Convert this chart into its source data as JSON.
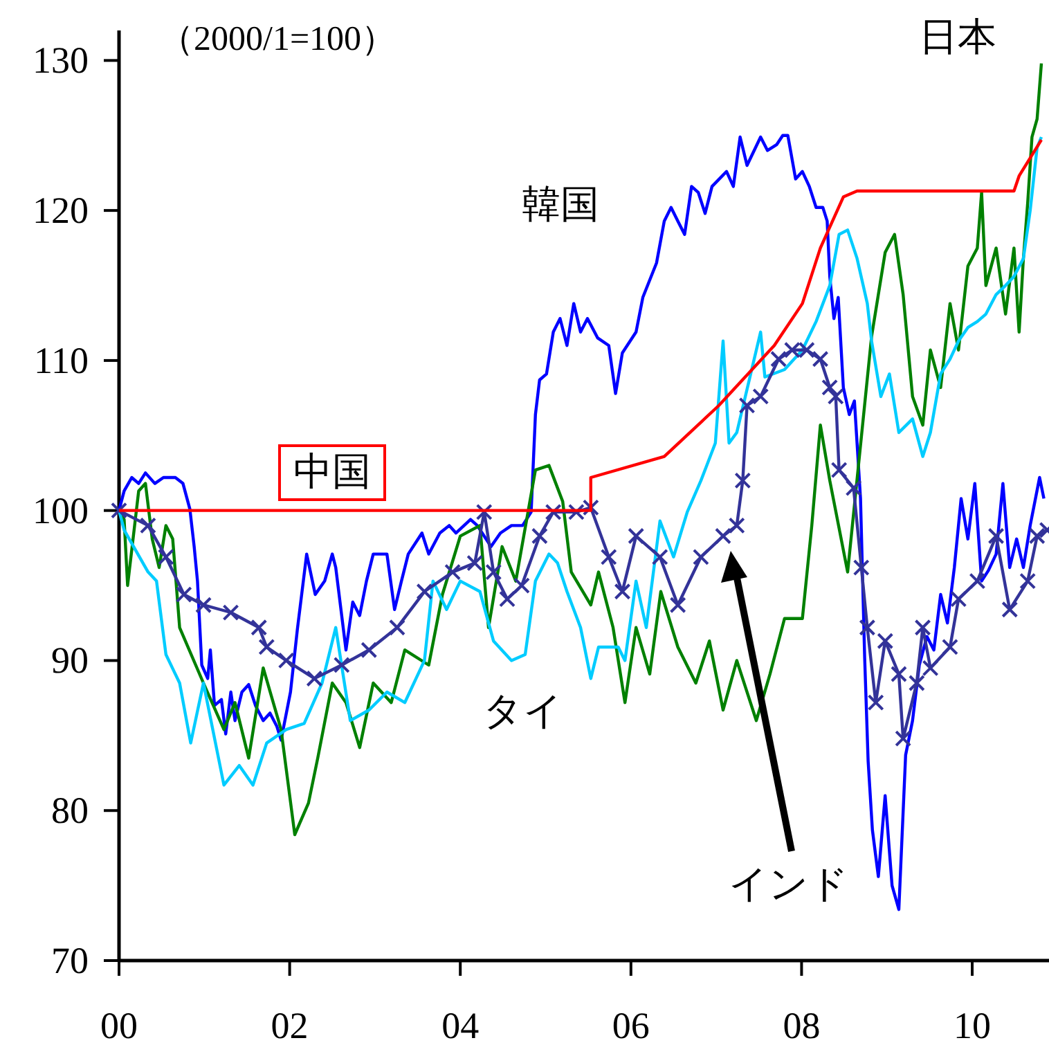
{
  "chart_data": {
    "type": "line",
    "ylabel": "（2000/1=100）",
    "xlim": [
      0,
      10.9
    ],
    "ylim": [
      70,
      132
    ],
    "xticks": [
      {
        "value": 0,
        "label": "00"
      },
      {
        "value": 2,
        "label": "02"
      },
      {
        "value": 4,
        "label": "04"
      },
      {
        "value": 6,
        "label": "06"
      },
      {
        "value": 8,
        "label": "08"
      },
      {
        "value": 10,
        "label": "10"
      }
    ],
    "yticks": [
      70,
      80,
      90,
      100,
      110,
      120,
      130
    ],
    "series": [
      {
        "name": "中国",
        "color": "#ff0000",
        "marker": "none",
        "x": [
          0,
          5.53,
          5.53,
          6.39,
          7.03,
          7.68,
          8.01,
          8.22,
          8.49,
          8.65,
          10.49,
          10.55,
          10.81
        ],
        "values": [
          100,
          100,
          102.2,
          103.6,
          107.0,
          111.0,
          113.8,
          117.5,
          120.9,
          121.3,
          121.3,
          122.3,
          124.7
        ]
      },
      {
        "name": "韓国",
        "color": "#0000ff",
        "marker": "none",
        "x": [
          0,
          0.06,
          0.15,
          0.23,
          0.31,
          0.42,
          0.52,
          0.66,
          0.75,
          0.83,
          0.88,
          0.92,
          0.97,
          1.04,
          1.07,
          1.12,
          1.2,
          1.25,
          1.31,
          1.36,
          1.44,
          1.52,
          1.6,
          1.69,
          1.77,
          1.85,
          1.9,
          2.01,
          2.09,
          2.2,
          2.3,
          2.41,
          2.5,
          2.54,
          2.66,
          2.74,
          2.82,
          2.9,
          2.98,
          3.14,
          3.23,
          3.31,
          3.39,
          3.55,
          3.63,
          3.76,
          3.87,
          3.95,
          4.12,
          4.2,
          4.36,
          4.47,
          4.6,
          4.73,
          4.83,
          4.88,
          4.93,
          5.01,
          5.09,
          5.17,
          5.25,
          5.33,
          5.41,
          5.49,
          5.61,
          5.74,
          5.82,
          5.9,
          6.06,
          6.14,
          6.3,
          6.39,
          6.47,
          6.55,
          6.63,
          6.71,
          6.79,
          6.87,
          6.95,
          7.12,
          7.2,
          7.28,
          7.36,
          7.52,
          7.6,
          7.71,
          7.78,
          7.84,
          7.93,
          8.01,
          8.09,
          8.17,
          8.25,
          8.3,
          8.33,
          8.38,
          8.43,
          8.49,
          8.56,
          8.62,
          8.69,
          8.74,
          8.78,
          8.83,
          8.9,
          8.98,
          9.06,
          9.14,
          9.22,
          9.3,
          9.38,
          9.47,
          9.55,
          9.63,
          9.71,
          9.79,
          9.87,
          9.95,
          10.03,
          10.11,
          10.19,
          10.28,
          10.36,
          10.44,
          10.52,
          10.6,
          10.68,
          10.79,
          10.84
        ],
        "values": [
          100,
          101.3,
          102.2,
          101.8,
          102.5,
          101.8,
          102.2,
          102.2,
          101.8,
          100.1,
          97.6,
          95.3,
          89.7,
          88.8,
          90.7,
          87.0,
          87.4,
          85.1,
          87.9,
          86.0,
          87.9,
          88.4,
          87.0,
          86.0,
          86.5,
          85.6,
          84.7,
          87.9,
          92.1,
          97.1,
          94.4,
          95.3,
          97.1,
          96.2,
          90.7,
          93.9,
          93.0,
          95.3,
          97.1,
          97.1,
          93.4,
          95.3,
          97.1,
          98.5,
          97.1,
          98.5,
          99.0,
          98.5,
          99.4,
          99.0,
          97.6,
          98.5,
          99.0,
          99.0,
          99.9,
          106.4,
          108.7,
          109.1,
          111.9,
          112.8,
          111.0,
          113.8,
          111.9,
          112.8,
          111.5,
          111.0,
          107.8,
          110.5,
          111.9,
          114.2,
          116.5,
          119.3,
          120.2,
          119.3,
          118.4,
          121.6,
          121.2,
          119.8,
          121.6,
          122.6,
          121.6,
          124.9,
          123.0,
          124.9,
          124.0,
          124.4,
          125.0,
          125.0,
          122.1,
          122.6,
          121.6,
          120.2,
          120.2,
          119.3,
          115.6,
          112.8,
          114.2,
          108.2,
          106.4,
          107.3,
          100.8,
          90.2,
          83.3,
          78.7,
          75.6,
          81.0,
          75.0,
          73.4,
          83.7,
          86.0,
          89.7,
          91.6,
          90.7,
          94.4,
          92.5,
          96.2,
          100.8,
          98.1,
          101.8,
          95.3,
          96.0,
          97.1,
          101.8,
          96.2,
          98.1,
          96.2,
          99.0,
          102.2,
          100.8
        ]
      },
      {
        "name": "日本",
        "color": "#008000",
        "marker": "none",
        "x": [
          0,
          0.06,
          0.1,
          0.23,
          0.31,
          0.39,
          0.47,
          0.55,
          0.63,
          0.71,
          0.99,
          1.23,
          1.36,
          1.52,
          1.69,
          1.9,
          2.06,
          2.22,
          2.33,
          2.5,
          2.66,
          2.82,
          2.98,
          3.19,
          3.35,
          3.63,
          3.79,
          4.0,
          4.23,
          4.33,
          4.49,
          4.65,
          4.88,
          5.04,
          5.2,
          5.3,
          5.53,
          5.62,
          5.79,
          5.93,
          6.06,
          6.22,
          6.35,
          6.55,
          6.76,
          6.92,
          7.08,
          7.24,
          7.47,
          7.63,
          7.8,
          8.01,
          8.12,
          8.22,
          8.33,
          8.54,
          8.82,
          8.98,
          9.09,
          9.19,
          9.3,
          9.42,
          9.51,
          9.63,
          9.74,
          9.84,
          9.95,
          10.06,
          10.11,
          10.16,
          10.28,
          10.39,
          10.49,
          10.55,
          10.6,
          10.65,
          10.7,
          10.76,
          10.81
        ],
        "values": [
          100,
          99.4,
          95.0,
          101.3,
          101.8,
          98.1,
          96.2,
          99.0,
          98.1,
          92.2,
          88.5,
          85.4,
          87.2,
          83.5,
          89.5,
          85.4,
          78.4,
          80.5,
          83.5,
          88.5,
          87.2,
          84.2,
          88.5,
          87.2,
          90.7,
          89.7,
          94.4,
          98.3,
          99.0,
          92.2,
          97.6,
          95.3,
          102.7,
          103.0,
          100.6,
          95.9,
          93.7,
          95.9,
          92.2,
          87.2,
          92.2,
          89.1,
          94.6,
          90.9,
          88.5,
          91.3,
          86.7,
          90.0,
          86.0,
          89.1,
          92.8,
          92.8,
          99.0,
          105.7,
          102.0,
          95.9,
          111.6,
          117.2,
          118.4,
          114.4,
          107.6,
          105.7,
          110.7,
          108.2,
          113.8,
          110.7,
          116.3,
          117.5,
          121.2,
          115.0,
          117.5,
          113.1,
          117.5,
          111.9,
          116.8,
          120.5,
          124.9,
          126.1,
          129.8
        ]
      },
      {
        "name": "タイ",
        "color": "#00ccff",
        "marker": "none",
        "x": [
          0,
          0.06,
          0.34,
          0.44,
          0.55,
          0.71,
          0.84,
          0.99,
          1.23,
          1.41,
          1.57,
          1.73,
          1.96,
          2.17,
          2.38,
          2.54,
          2.71,
          2.93,
          3.14,
          3.35,
          3.58,
          3.68,
          3.84,
          4.0,
          4.23,
          4.39,
          4.6,
          4.76,
          4.88,
          5.04,
          5.14,
          5.25,
          5.41,
          5.53,
          5.62,
          5.85,
          5.93,
          6.06,
          6.18,
          6.34,
          6.5,
          6.66,
          6.82,
          6.99,
          7.08,
          7.15,
          7.24,
          7.52,
          7.57,
          7.8,
          8.01,
          8.17,
          8.33,
          8.44,
          8.54,
          8.65,
          8.77,
          8.82,
          8.93,
          9.03,
          9.14,
          9.3,
          9.42,
          9.51,
          9.63,
          9.74,
          9.84,
          9.95,
          10.06,
          10.16,
          10.28,
          10.39,
          10.49,
          10.6,
          10.68,
          10.76,
          10.81
        ],
        "values": [
          100,
          98.7,
          95.9,
          95.3,
          90.4,
          88.5,
          84.5,
          88.5,
          81.7,
          83.0,
          81.7,
          84.5,
          85.4,
          85.8,
          88.5,
          92.2,
          86.0,
          86.7,
          87.9,
          87.2,
          90.0,
          95.3,
          93.4,
          95.3,
          94.6,
          91.3,
          90.0,
          90.4,
          95.3,
          97.1,
          96.5,
          94.6,
          92.2,
          88.8,
          90.9,
          90.9,
          90.0,
          95.3,
          92.2,
          99.3,
          96.9,
          99.9,
          102.0,
          104.5,
          111.3,
          104.5,
          105.2,
          111.9,
          108.9,
          109.4,
          110.7,
          112.6,
          115.0,
          118.4,
          118.7,
          116.8,
          113.8,
          111.3,
          107.6,
          109.1,
          105.2,
          106.1,
          103.6,
          105.2,
          109.1,
          110.1,
          111.3,
          112.2,
          112.6,
          113.1,
          114.4,
          115.0,
          115.6,
          116.8,
          120.0,
          124.2,
          124.9
        ]
      },
      {
        "name": "インド",
        "color": "#333399",
        "marker": "cross",
        "x": [
          0,
          0.34,
          0.55,
          0.76,
          0.99,
          1.31,
          1.64,
          1.73,
          1.96,
          2.29,
          2.61,
          2.93,
          3.26,
          3.58,
          3.91,
          4.17,
          4.28,
          4.39,
          4.55,
          4.72,
          4.93,
          5.09,
          5.36,
          5.53,
          5.74,
          5.9,
          6.06,
          6.34,
          6.55,
          6.82,
          7.08,
          7.24,
          7.31,
          7.36,
          7.52,
          7.73,
          7.89,
          8.06,
          8.22,
          8.33,
          8.4,
          8.44,
          8.61,
          8.7,
          8.77,
          8.87,
          8.98,
          9.14,
          9.19,
          9.35,
          9.42,
          9.51,
          9.74,
          9.84,
          10.06,
          10.28,
          10.44,
          10.65,
          10.76,
          10.88
        ],
        "values": [
          100,
          99.0,
          96.9,
          94.4,
          93.7,
          93.2,
          92.2,
          90.9,
          90.0,
          88.8,
          89.7,
          90.7,
          92.2,
          94.6,
          95.9,
          96.5,
          99.9,
          95.9,
          94.1,
          95.0,
          98.3,
          99.9,
          99.9,
          100.2,
          96.9,
          94.6,
          98.3,
          96.9,
          93.7,
          96.9,
          98.3,
          99.0,
          102.0,
          107.0,
          107.6,
          110.1,
          110.7,
          110.7,
          110.1,
          108.2,
          107.6,
          102.7,
          101.5,
          96.2,
          92.2,
          87.2,
          91.3,
          89.1,
          84.8,
          88.5,
          92.2,
          89.5,
          90.9,
          94.1,
          95.3,
          98.3,
          93.4,
          95.3,
          98.3,
          98.7
        ]
      }
    ]
  }
}
